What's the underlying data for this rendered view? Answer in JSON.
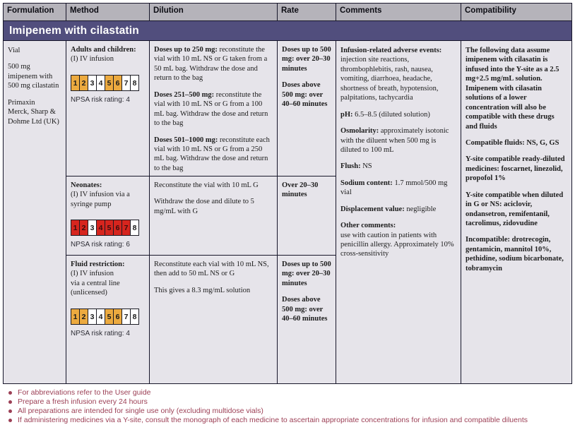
{
  "colors": {
    "banner_bg": "#514e7d",
    "banner_text": "#ffffff",
    "header_bg": "#b5b3ba",
    "cell_bg": "#e6e4ea",
    "border": "#17162a",
    "amber": "#ecaa3f",
    "red": "#d6251e",
    "footnote": "#9c3f55"
  },
  "header": {
    "columns": [
      "Formulation",
      "Method",
      "Dilution",
      "Rate",
      "Comments",
      "Compatibility"
    ]
  },
  "banner": {
    "title": "Imipenem with cilastatin"
  },
  "formulation": {
    "paragraphs": [
      {
        "text": "Vial"
      },
      {
        "text": "500 mg imipenem with 500 mg cilastatin"
      },
      {
        "text": "Primaxin\nMerck, Sharp &\nDohme Ltd (UK)"
      }
    ]
  },
  "method": {
    "sections": [
      {
        "heading": "Adults and children:",
        "route": "(I) IV infusion",
        "scale": [
          {
            "n": "1",
            "c": "amber"
          },
          {
            "n": "2",
            "c": "amber"
          },
          {
            "n": "3",
            "c": "white"
          },
          {
            "n": "4",
            "c": "white"
          },
          {
            "n": "5",
            "c": "amber"
          },
          {
            "n": "6",
            "c": "amber"
          },
          {
            "n": "7",
            "c": "white"
          },
          {
            "n": "8",
            "c": "white"
          }
        ],
        "rating": "NPSA risk rating: 4"
      },
      {
        "heading": "Neonates:",
        "route": "(I) IV infusion via a syringe pump",
        "scale": [
          {
            "n": "1",
            "c": "red"
          },
          {
            "n": "2",
            "c": "red"
          },
          {
            "n": "3",
            "c": "white"
          },
          {
            "n": "4",
            "c": "red"
          },
          {
            "n": "5",
            "c": "red"
          },
          {
            "n": "6",
            "c": "red"
          },
          {
            "n": "7",
            "c": "red"
          },
          {
            "n": "8",
            "c": "white"
          }
        ],
        "rating": "NPSA risk rating: 6"
      },
      {
        "heading": "Fluid restriction:",
        "route": "(I) IV infusion\nvia a central line\n(unlicensed)",
        "scale": [
          {
            "n": "1",
            "c": "amber"
          },
          {
            "n": "2",
            "c": "amber"
          },
          {
            "n": "3",
            "c": "white"
          },
          {
            "n": "4",
            "c": "white"
          },
          {
            "n": "5",
            "c": "amber"
          },
          {
            "n": "6",
            "c": "amber"
          },
          {
            "n": "7",
            "c": "white"
          },
          {
            "n": "8",
            "c": "white"
          }
        ],
        "rating": "NPSA risk rating: 4"
      }
    ]
  },
  "dilution": {
    "rows": [
      {
        "paragraphs": [
          {
            "lead": "Doses up to 250 mg:",
            "text": "reconstitute the vial with 10 mL NS or G taken from a 50 mL bag. Withdraw the dose and return to the bag"
          },
          {
            "lead": "Doses 251–500 mg:",
            "text": "reconstitute the vial with 10 mL NS or G from a 100 mL bag. Withdraw the dose and return to the bag"
          },
          {
            "lead": "Doses 501–1000 mg:",
            "text": "reconstitute each vial with 10 mL NS or G from a 250 mL bag. Withdraw the dose and return to the bag"
          }
        ]
      },
      {
        "paragraphs": [
          {
            "text": "Reconstitute the vial with 10 mL G"
          },
          {
            "text": "Withdraw the dose and dilute to 5 mg/mL with G"
          }
        ]
      },
      {
        "paragraphs": [
          {
            "text": "Reconstitute each vial with 10 mL NS, then add to 50 mL NS or G"
          },
          {
            "text": "This gives a 8.3 mg/mL solution"
          }
        ]
      }
    ]
  },
  "rate": {
    "rows": [
      {
        "paragraphs": [
          {
            "text": "Doses up to 500 mg: over 20–30 minutes",
            "bold": true
          },
          {
            "text": "Doses above 500 mg: over 40–60 minutes",
            "bold": true
          }
        ]
      },
      {
        "paragraphs": [
          {
            "text": "Over 20–30 minutes",
            "bold": true
          }
        ]
      },
      {
        "paragraphs": [
          {
            "text": "Doses up to 500 mg: over 20–30 minutes",
            "bold": true
          },
          {
            "text": "Doses above 500 mg: over 40–60 minutes",
            "bold": true
          }
        ]
      }
    ]
  },
  "comments": {
    "paragraphs": [
      {
        "lead": "Infusion-related adverse events:",
        "text": "injection site reactions, thrombophlebitis, rash, nausea, vomiting, diarrhoea, headache, shortness of breath, hypotension, palpitations, tachycardia"
      },
      {
        "lead": "pH:",
        "text": "6.5–8.5 (diluted solution)"
      },
      {
        "lead": "Osmolarity:",
        "text": "approximately isotonic with the diluent when 500 mg is diluted to 100 mL"
      },
      {
        "lead": "Flush:",
        "text": "NS"
      },
      {
        "lead": "Sodium content:",
        "text": "1.7 mmol/500 mg vial"
      },
      {
        "lead": "Displacement value:",
        "text": "negligible"
      },
      {
        "lead": "Other comments:",
        "leadBlock": true,
        "text": "use with caution in patients with penicillin allergy. Approximately 10% cross-sensitivity"
      }
    ]
  },
  "compatibility": {
    "paragraphs": [
      {
        "text": "The following data assume imipenem with cilasatin is infused into the Y-site as a 2.5 mg+2.5 mg/mL solution. Imipenem with cilasatin solutions of a lower concentration will also be compatible with these drugs and fluids",
        "bold": true
      },
      {
        "text": "Compatible fluids: NS, G, GS",
        "bold": true
      },
      {
        "text": "Y-site compatible ready-diluted medicines: foscarnet, linezolid, propofol 1%",
        "bold": true
      },
      {
        "text": "Y-site compatible when diluted in G or NS: aciclovir, ondansetron, remifentanil, tacrolimus, zidovudine",
        "bold": true
      },
      {
        "text": "Incompatible: drotrecogin, gentamicin, mannitol 10%, pethidine, sodium bicarbonate, tobramycin",
        "bold": true
      }
    ]
  },
  "footnotes": {
    "items": [
      "For abbreviations refer to the User guide",
      "Prepare a fresh infusion every 24 hours",
      "All preparations are intended for single use only (excluding multidose vials)",
      "If administering medicines via a Y-site, consult the monograph of each medicine to ascertain appropriate concentrations for infusion and compatible diluents"
    ]
  }
}
